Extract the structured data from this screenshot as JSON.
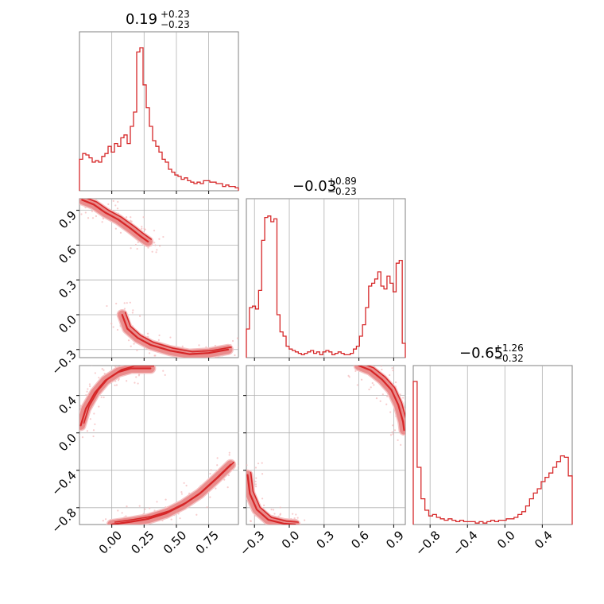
{
  "chart_data": {
    "type": "corner",
    "colors": {
      "accent": "#d62728",
      "fill": "#f4c3c4",
      "scatter": "#f3b6b8",
      "grid": "#b0b0b0",
      "frame": "#808080"
    },
    "params": [
      {
        "id": "p0",
        "range": [
          -0.25,
          0.98
        ],
        "title_value": "0.19",
        "plus": "+0.23",
        "minus": "−0.23",
        "ticks": [
          0.0,
          0.25,
          0.5,
          0.75
        ],
        "tick_labels": [
          "0.00",
          "0.25",
          "0.50",
          "0.75"
        ]
      },
      {
        "id": "p1",
        "range": [
          -0.37,
          1.0
        ],
        "title_value": "−0.03",
        "plus": "+0.89",
        "minus": "−0.23",
        "ticks": [
          -0.3,
          0.0,
          0.3,
          0.6,
          0.9
        ],
        "tick_labels": [
          "−0.3",
          "0.0",
          "0.3",
          "0.6",
          "0.9"
        ]
      },
      {
        "id": "p2",
        "range": [
          -0.98,
          0.72
        ],
        "title_value": "−0.65",
        "plus": "+1.26",
        "minus": "−0.32",
        "ticks": [
          -0.8,
          -0.4,
          0.0,
          0.4
        ],
        "tick_labels": [
          "−0.8",
          "−0.4",
          "0.0",
          "0.4"
        ]
      }
    ],
    "histograms": [
      {
        "param": 0,
        "values": [
          0.22,
          0.26,
          0.25,
          0.23,
          0.2,
          0.21,
          0.2,
          0.24,
          0.26,
          0.31,
          0.27,
          0.33,
          0.31,
          0.37,
          0.39,
          0.33,
          0.45,
          0.55,
          0.97,
          1.0,
          0.74,
          0.58,
          0.45,
          0.35,
          0.31,
          0.27,
          0.22,
          0.2,
          0.15,
          0.13,
          0.11,
          0.1,
          0.08,
          0.09,
          0.07,
          0.06,
          0.05,
          0.06,
          0.05,
          0.07,
          0.07,
          0.06,
          0.06,
          0.05,
          0.05,
          0.03,
          0.04,
          0.03,
          0.03,
          0.02
        ]
      },
      {
        "param": 1,
        "values": [
          0.2,
          0.35,
          0.36,
          0.34,
          0.47,
          0.82,
          0.98,
          0.99,
          0.95,
          0.97,
          0.3,
          0.18,
          0.15,
          0.08,
          0.06,
          0.05,
          0.04,
          0.03,
          0.02,
          0.03,
          0.04,
          0.05,
          0.03,
          0.04,
          0.02,
          0.04,
          0.05,
          0.04,
          0.02,
          0.03,
          0.04,
          0.03,
          0.02,
          0.02,
          0.03,
          0.06,
          0.08,
          0.15,
          0.23,
          0.35,
          0.5,
          0.52,
          0.55,
          0.6,
          0.5,
          0.48,
          0.57,
          0.52,
          0.46,
          0.66,
          0.68,
          0.1
        ]
      },
      {
        "param": 2,
        "values": [
          1.0,
          0.4,
          0.18,
          0.1,
          0.06,
          0.07,
          0.05,
          0.04,
          0.03,
          0.04,
          0.03,
          0.02,
          0.03,
          0.02,
          0.02,
          0.02,
          0.01,
          0.02,
          0.01,
          0.02,
          0.03,
          0.02,
          0.03,
          0.03,
          0.04,
          0.04,
          0.05,
          0.07,
          0.09,
          0.13,
          0.18,
          0.22,
          0.25,
          0.3,
          0.33,
          0.36,
          0.4,
          0.44,
          0.48,
          0.47,
          0.34
        ]
      }
    ],
    "contours": [
      {
        "x_param": 0,
        "y_param": 1,
        "bands": [
          [
            [
              -0.23,
              0.99
            ],
            [
              -0.14,
              0.95
            ],
            [
              -0.05,
              0.88
            ],
            [
              0.05,
              0.82
            ],
            [
              0.15,
              0.74
            ],
            [
              0.23,
              0.67
            ],
            [
              0.28,
              0.63
            ]
          ],
          [
            [
              0.08,
              0.0
            ],
            [
              0.12,
              -0.12
            ],
            [
              0.2,
              -0.2
            ],
            [
              0.3,
              -0.26
            ],
            [
              0.45,
              -0.31
            ],
            [
              0.6,
              -0.34
            ],
            [
              0.75,
              -0.33
            ],
            [
              0.9,
              -0.3
            ]
          ]
        ]
      },
      {
        "x_param": 0,
        "y_param": 2,
        "bands": [
          [
            [
              -0.24,
              0.08
            ],
            [
              -0.2,
              0.26
            ],
            [
              -0.13,
              0.43
            ],
            [
              -0.05,
              0.56
            ],
            [
              0.05,
              0.65
            ],
            [
              0.15,
              0.69
            ],
            [
              0.3,
              0.69
            ]
          ],
          [
            [
              0.0,
              -0.98
            ],
            [
              0.15,
              -0.95
            ],
            [
              0.28,
              -0.92
            ],
            [
              0.42,
              -0.86
            ],
            [
              0.55,
              -0.77
            ],
            [
              0.68,
              -0.65
            ],
            [
              0.8,
              -0.5
            ],
            [
              0.92,
              -0.34
            ]
          ]
        ]
      },
      {
        "x_param": 1,
        "y_param": 2,
        "bands": [
          [
            [
              0.6,
              0.72
            ],
            [
              0.7,
              0.67
            ],
            [
              0.8,
              0.57
            ],
            [
              0.88,
              0.46
            ],
            [
              0.94,
              0.3
            ],
            [
              0.98,
              0.12
            ],
            [
              0.99,
              0.03
            ]
          ],
          [
            [
              -0.36,
              -0.45
            ],
            [
              -0.34,
              -0.65
            ],
            [
              -0.28,
              -0.82
            ],
            [
              -0.18,
              -0.93
            ],
            [
              -0.05,
              -0.97
            ],
            [
              0.05,
              -0.98
            ]
          ]
        ]
      }
    ]
  }
}
